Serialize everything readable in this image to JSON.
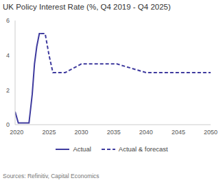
{
  "chart_data": {
    "type": "line",
    "title": "UK Policy Interest Rate (%, Q4 2019 - Q4 2025)",
    "source": "Sources: Refinitiv, Capital Economics",
    "x": [
      2019.75,
      2020.25,
      2021.9,
      2022.1,
      2022.4,
      2022.75,
      2023.1,
      2023.5,
      2023.75,
      2024.4,
      2025.0,
      2025.6,
      2027.5,
      2030.0,
      2035.5,
      2040.0,
      2050.0
    ],
    "series": [
      {
        "name": "Actual",
        "color": "#3e3a9e",
        "line_style": "solid",
        "values": [
          0.75,
          0.1,
          0.1,
          0.75,
          1.75,
          3.5,
          4.5,
          5.25,
          5.25,
          null,
          null,
          null,
          null,
          null,
          null,
          null,
          null
        ]
      },
      {
        "name": "Actual & forecast",
        "color": "#3e3a9e",
        "line_style": "dashed",
        "values": [
          null,
          null,
          null,
          null,
          null,
          null,
          null,
          null,
          5.25,
          5.25,
          4.0,
          3.0,
          3.0,
          3.5,
          3.5,
          3.0,
          3.0
        ]
      }
    ],
    "xlim": [
      2019.75,
      2050
    ],
    "xticks": [
      2020,
      2025,
      2030,
      2035,
      2040,
      2045,
      2050
    ],
    "ylim": [
      0,
      6
    ],
    "yticks": [
      0,
      2,
      4,
      6
    ],
    "grid": false,
    "legend": "bottom"
  }
}
